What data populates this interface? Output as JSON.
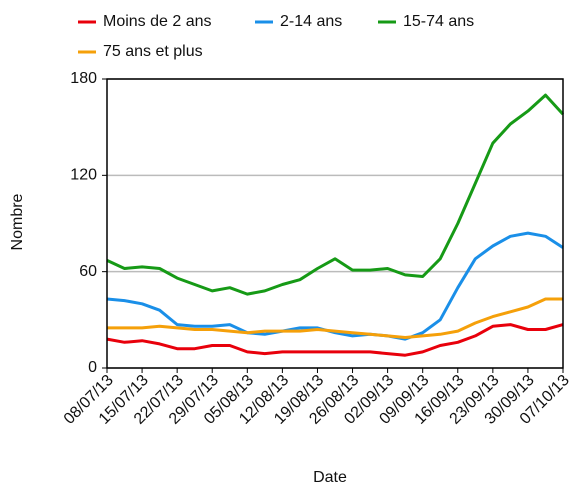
{
  "chart_data": {
    "type": "line",
    "x_label": "Date",
    "y_label": "Nombre",
    "categories": [
      "08/07/13",
      null,
      "15/07/13",
      null,
      "22/07/13",
      null,
      "29/07/13",
      null,
      "05/08/13",
      null,
      "12/08/13",
      null,
      "19/08/13",
      null,
      "26/08/13",
      null,
      "02/09/13",
      null,
      "09/09/13",
      null,
      "16/09/13",
      null,
      "23/09/13",
      null,
      "30/09/13",
      null,
      "07/10/13"
    ],
    "series": [
      {
        "name": "Moins de 2 ans",
        "color": "#e8000b",
        "values": [
          18,
          16,
          17,
          15,
          12,
          12,
          14,
          14,
          10,
          9,
          10,
          10,
          10,
          10,
          10,
          10,
          9,
          8,
          10,
          14,
          16,
          20,
          26,
          27,
          24,
          24,
          27
        ]
      },
      {
        "name": "2-14 ans",
        "color": "#1a8fe8",
        "values": [
          43,
          42,
          40,
          36,
          27,
          26,
          26,
          27,
          22,
          21,
          23,
          25,
          25,
          22,
          20,
          21,
          20,
          18,
          22,
          30,
          50,
          68,
          76,
          82,
          84,
          82,
          75
        ]
      },
      {
        "name": "15-74 ans",
        "color": "#169a16",
        "values": [
          67,
          62,
          63,
          62,
          56,
          52,
          48,
          50,
          46,
          48,
          52,
          55,
          62,
          68,
          61,
          61,
          62,
          58,
          57,
          68,
          90,
          115,
          140,
          152,
          160,
          170,
          158
        ]
      },
      {
        "name": "75 ans et plus",
        "color": "#f5a00a",
        "values": [
          25,
          25,
          25,
          26,
          25,
          24,
          24,
          23,
          22,
          23,
          23,
          23,
          24,
          23,
          22,
          21,
          20,
          19,
          20,
          21,
          23,
          28,
          32,
          35,
          38,
          43,
          43
        ]
      }
    ],
    "ylim": [
      0,
      180
    ],
    "yticks": [
      0,
      60,
      120,
      180
    ],
    "grid": true,
    "legend": "top"
  }
}
